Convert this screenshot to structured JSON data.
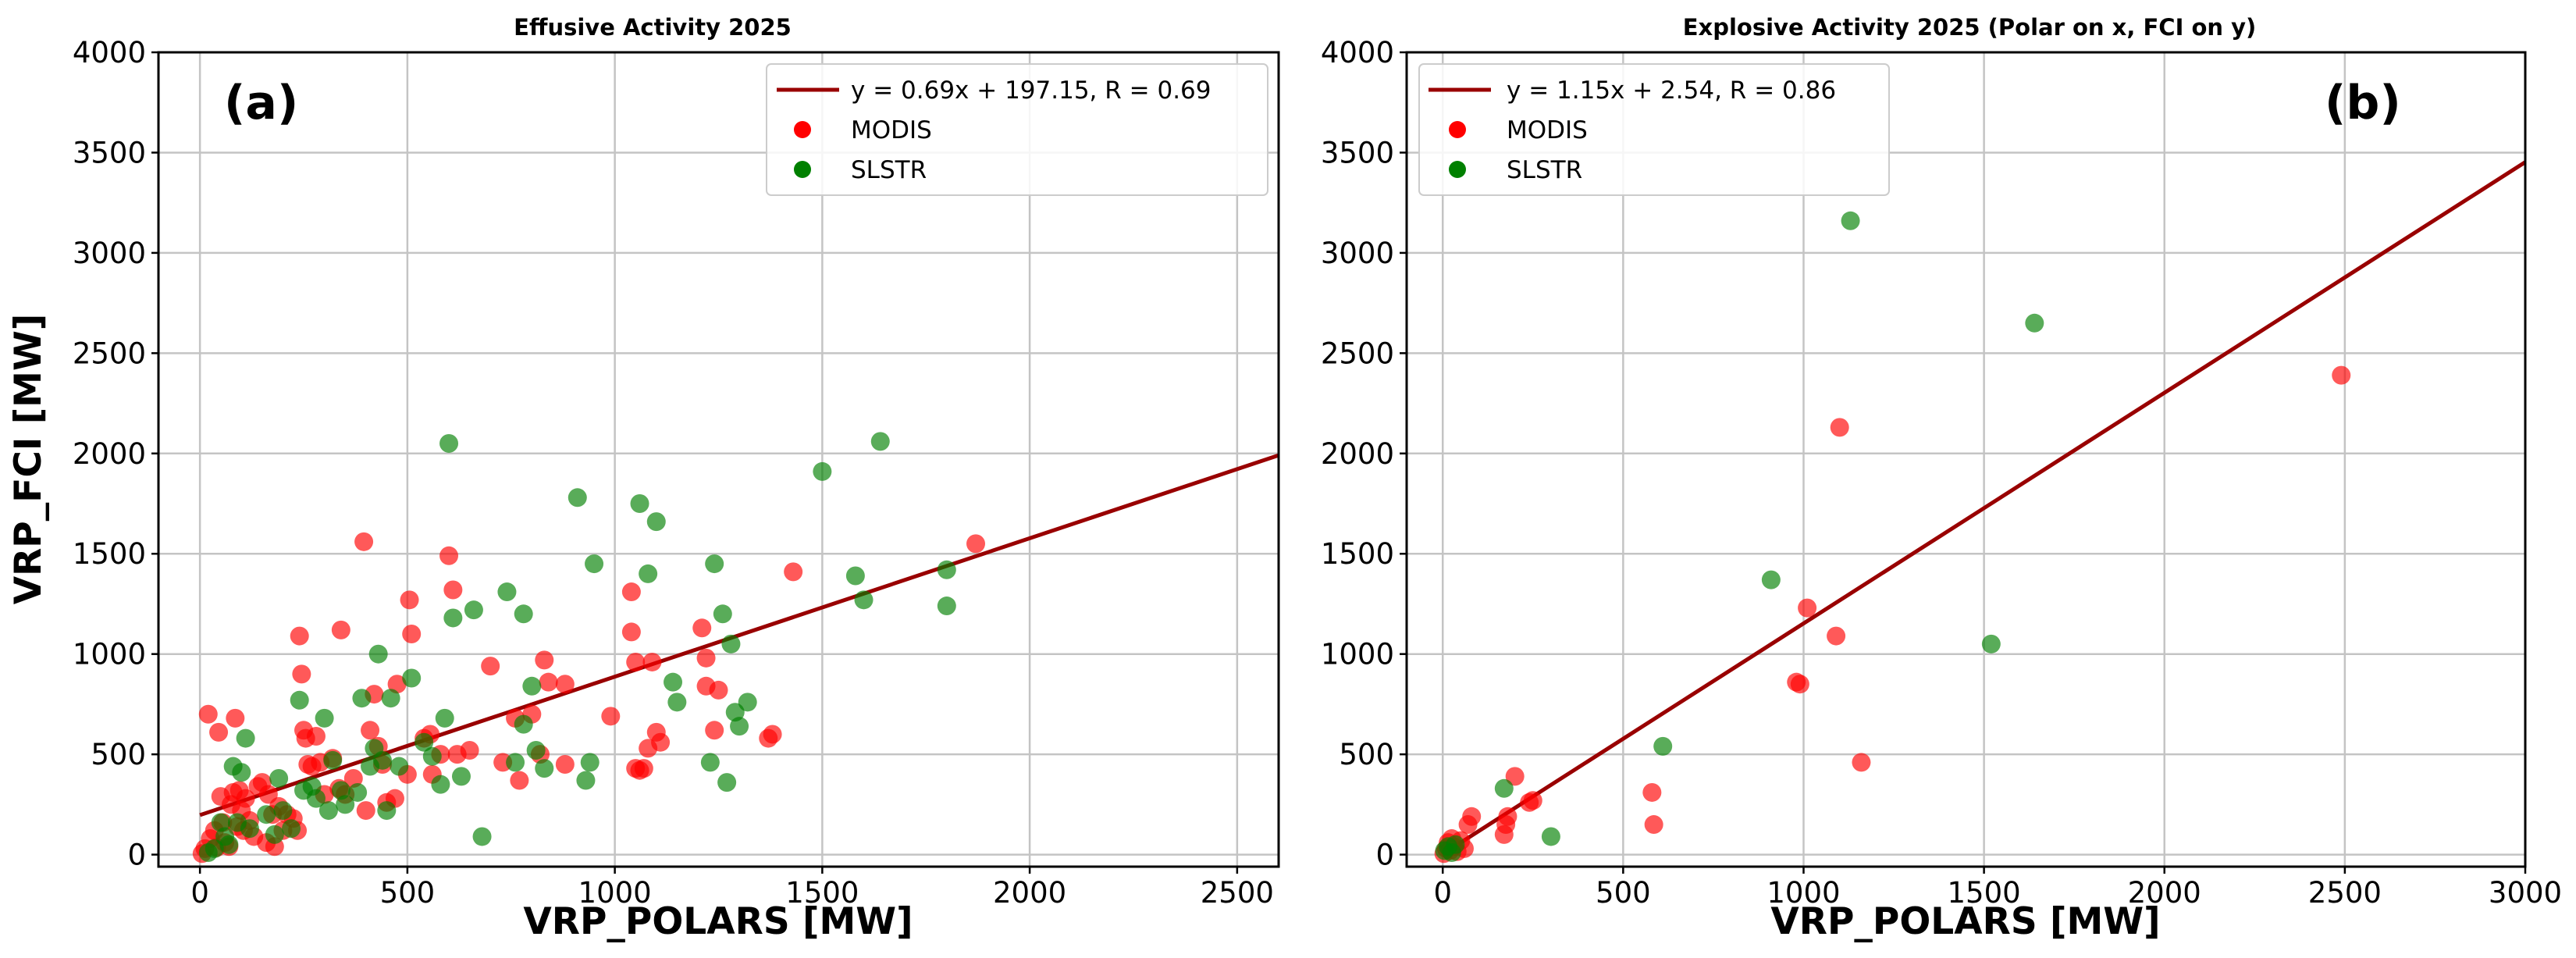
{
  "colors": {
    "modis": "#ff0000",
    "slstr": "#008000",
    "fit_line": "#990000",
    "grid": "#c4c4c4"
  },
  "chart_data": [
    {
      "type": "scatter",
      "panel_label": "(a)",
      "title": "Effusive Activity 2025",
      "xlabel": "VRP_POLARS [MW]",
      "ylabel": "VRP_FCI [MW]",
      "xlim": [
        -100,
        2600
      ],
      "ylim": [
        -60,
        4000
      ],
      "xticks": [
        0,
        500,
        1000,
        1500,
        2000,
        2500
      ],
      "yticks": [
        0,
        500,
        1000,
        1500,
        2000,
        2500,
        3000,
        3500,
        4000
      ],
      "grid": true,
      "legend_position": "top-right",
      "fit": {
        "slope": 0.69,
        "intercept": 197.15,
        "label": "y = 0.69x + 197.15, R = 0.69"
      },
      "series": [
        {
          "name": "MODIS",
          "color": "#ff0000",
          "points": [
            [
              5,
              5
            ],
            [
              12,
              30
            ],
            [
              20,
              700
            ],
            [
              25,
              80
            ],
            [
              35,
              120
            ],
            [
              40,
              35
            ],
            [
              45,
              610
            ],
            [
              50,
              290
            ],
            [
              55,
              160
            ],
            [
              60,
              60
            ],
            [
              70,
              40
            ],
            [
              75,
              250
            ],
            [
              80,
              310
            ],
            [
              85,
              680
            ],
            [
              90,
              140
            ],
            [
              95,
              320
            ],
            [
              100,
              220
            ],
            [
              105,
              120
            ],
            [
              110,
              280
            ],
            [
              120,
              170
            ],
            [
              130,
              90
            ],
            [
              140,
              340
            ],
            [
              150,
              360
            ],
            [
              160,
              60
            ],
            [
              165,
              300
            ],
            [
              175,
              200
            ],
            [
              180,
              40
            ],
            [
              190,
              240
            ],
            [
              200,
              120
            ],
            [
              210,
              200
            ],
            [
              225,
              180
            ],
            [
              235,
              120
            ],
            [
              240,
              1090
            ],
            [
              245,
              900
            ],
            [
              250,
              620
            ],
            [
              255,
              580
            ],
            [
              260,
              450
            ],
            [
              270,
              440
            ],
            [
              280,
              590
            ],
            [
              290,
              460
            ],
            [
              300,
              300
            ],
            [
              320,
              480
            ],
            [
              335,
              330
            ],
            [
              340,
              1120
            ],
            [
              350,
              300
            ],
            [
              370,
              380
            ],
            [
              395,
              1560
            ],
            [
              400,
              220
            ],
            [
              410,
              620
            ],
            [
              420,
              800
            ],
            [
              430,
              540
            ],
            [
              440,
              450
            ],
            [
              450,
              260
            ],
            [
              470,
              280
            ],
            [
              475,
              850
            ],
            [
              500,
              400
            ],
            [
              505,
              1270
            ],
            [
              510,
              1100
            ],
            [
              540,
              580
            ],
            [
              555,
              600
            ],
            [
              560,
              400
            ],
            [
              580,
              500
            ],
            [
              600,
              1490
            ],
            [
              610,
              1320
            ],
            [
              620,
              500
            ],
            [
              650,
              520
            ],
            [
              700,
              940
            ],
            [
              730,
              460
            ],
            [
              760,
              680
            ],
            [
              770,
              370
            ],
            [
              800,
              700
            ],
            [
              820,
              500
            ],
            [
              830,
              970
            ],
            [
              840,
              860
            ],
            [
              880,
              850
            ],
            [
              880,
              450
            ],
            [
              990,
              690
            ],
            [
              1040,
              1310
            ],
            [
              1040,
              1110
            ],
            [
              1050,
              960
            ],
            [
              1050,
              430
            ],
            [
              1060,
              420
            ],
            [
              1070,
              430
            ],
            [
              1080,
              530
            ],
            [
              1090,
              960
            ],
            [
              1100,
              610
            ],
            [
              1110,
              560
            ],
            [
              1210,
              1130
            ],
            [
              1220,
              840
            ],
            [
              1220,
              980
            ],
            [
              1240,
              620
            ],
            [
              1250,
              820
            ],
            [
              1370,
              580
            ],
            [
              1380,
              600
            ],
            [
              1430,
              1410
            ],
            [
              1870,
              1550
            ]
          ]
        },
        {
          "name": "SLSTR",
          "color": "#008000",
          "points": [
            [
              20,
              10
            ],
            [
              35,
              30
            ],
            [
              50,
              160
            ],
            [
              60,
              90
            ],
            [
              70,
              50
            ],
            [
              80,
              440
            ],
            [
              90,
              160
            ],
            [
              100,
              410
            ],
            [
              110,
              580
            ],
            [
              120,
              130
            ],
            [
              160,
              200
            ],
            [
              180,
              100
            ],
            [
              190,
              380
            ],
            [
              200,
              220
            ],
            [
              220,
              130
            ],
            [
              240,
              770
            ],
            [
              250,
              320
            ],
            [
              270,
              340
            ],
            [
              280,
              280
            ],
            [
              300,
              680
            ],
            [
              310,
              220
            ],
            [
              320,
              470
            ],
            [
              340,
              320
            ],
            [
              350,
              250
            ],
            [
              380,
              310
            ],
            [
              390,
              780
            ],
            [
              410,
              440
            ],
            [
              420,
              530
            ],
            [
              430,
              1000
            ],
            [
              440,
              470
            ],
            [
              450,
              220
            ],
            [
              460,
              780
            ],
            [
              480,
              440
            ],
            [
              510,
              880
            ],
            [
              540,
              560
            ],
            [
              560,
              490
            ],
            [
              580,
              350
            ],
            [
              590,
              680
            ],
            [
              600,
              2050
            ],
            [
              610,
              1180
            ],
            [
              630,
              390
            ],
            [
              660,
              1220
            ],
            [
              680,
              90
            ],
            [
              740,
              1310
            ],
            [
              760,
              460
            ],
            [
              780,
              650
            ],
            [
              780,
              1200
            ],
            [
              800,
              840
            ],
            [
              810,
              520
            ],
            [
              830,
              430
            ],
            [
              910,
              1780
            ],
            [
              930,
              370
            ],
            [
              940,
              460
            ],
            [
              950,
              1450
            ],
            [
              1060,
              1750
            ],
            [
              1080,
              1400
            ],
            [
              1100,
              1660
            ],
            [
              1140,
              860
            ],
            [
              1150,
              760
            ],
            [
              1230,
              460
            ],
            [
              1240,
              1450
            ],
            [
              1260,
              1200
            ],
            [
              1270,
              360
            ],
            [
              1280,
              1050
            ],
            [
              1290,
              710
            ],
            [
              1300,
              640
            ],
            [
              1320,
              760
            ],
            [
              1500,
              1910
            ],
            [
              1580,
              1390
            ],
            [
              1600,
              1270
            ],
            [
              1640,
              2060
            ],
            [
              1800,
              1420
            ],
            [
              1800,
              1240
            ]
          ]
        }
      ]
    },
    {
      "type": "scatter",
      "panel_label": "(b)",
      "title": "Explosive Activity 2025 (Polar on x, FCI on y)",
      "xlabel": "VRP_POLARS [MW]",
      "ylabel": "",
      "xlim": [
        -100,
        3000
      ],
      "ylim": [
        -60,
        4000
      ],
      "xticks": [
        0,
        500,
        1000,
        1500,
        2000,
        2500,
        3000
      ],
      "yticks": [
        0,
        500,
        1000,
        1500,
        2000,
        2500,
        3000,
        3500,
        4000
      ],
      "grid": true,
      "legend_position": "top-left",
      "fit": {
        "slope": 1.15,
        "intercept": 2.54,
        "label": "y = 1.15x + 2.54, R = 0.86"
      },
      "series": [
        {
          "name": "MODIS",
          "color": "#ff0000",
          "points": [
            [
              3,
              5
            ],
            [
              10,
              30
            ],
            [
              15,
              60
            ],
            [
              20,
              20
            ],
            [
              25,
              80
            ],
            [
              30,
              40
            ],
            [
              40,
              15
            ],
            [
              50,
              70
            ],
            [
              60,
              30
            ],
            [
              70,
              150
            ],
            [
              80,
              190
            ],
            [
              170,
              100
            ],
            [
              175,
              150
            ],
            [
              180,
              190
            ],
            [
              200,
              390
            ],
            [
              240,
              260
            ],
            [
              250,
              270
            ],
            [
              580,
              310
            ],
            [
              585,
              150
            ],
            [
              980,
              860
            ],
            [
              990,
              850
            ],
            [
              1010,
              1230
            ],
            [
              1090,
              1090
            ],
            [
              1100,
              2130
            ],
            [
              1160,
              460
            ],
            [
              2490,
              2390
            ]
          ]
        },
        {
          "name": "SLSTR",
          "color": "#008000",
          "points": [
            [
              5,
              20
            ],
            [
              15,
              40
            ],
            [
              25,
              10
            ],
            [
              35,
              50
            ],
            [
              170,
              330
            ],
            [
              300,
              90
            ],
            [
              610,
              540
            ],
            [
              910,
              1370
            ],
            [
              1130,
              3160
            ],
            [
              1520,
              1050
            ],
            [
              1640,
              2650
            ]
          ]
        }
      ]
    }
  ]
}
